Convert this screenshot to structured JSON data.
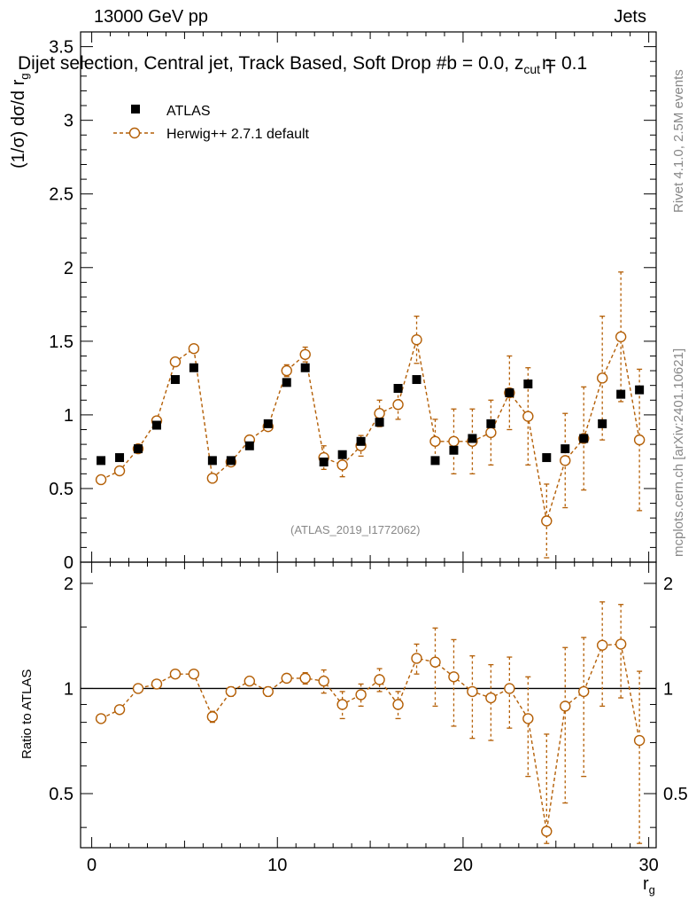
{
  "header": {
    "left": "13000 GeV pp",
    "right": "Jets",
    "title": "Dijet selection, Central jet, Track Based, Soft Drop #b = 0.0, z",
    "title_sub": "cut",
    "title_tail": "= 0.1",
    "eta_glyph": "η"
  },
  "side_labels": {
    "rivet": "Rivet 4.1.0,  2.5M events",
    "url": "mcplots.cern.ch [arXiv:2401.10621]"
  },
  "analysis_id": "(ATLAS_2019_I1772062)",
  "axes": {
    "ylabel_top": "(1/σ) dσ/d r",
    "ylabel_top_sub": "g",
    "ylabel_bottom": "Ratio to ATLAS",
    "xlabel": "r",
    "xlabel_sub": "g"
  },
  "colors": {
    "data": "#000000",
    "mc": "#b45f06",
    "axis": "#000000",
    "muted": "#888888"
  },
  "legend": {
    "data_label": "ATLAS",
    "mc_label": "Herwig++ 2.7.1 default"
  },
  "chart_data": [
    {
      "type": "scatter",
      "title": "Dijet selection, Central jet, Track Based, Soft Drop #b = 0.0, zcut = 0.1",
      "xlabel": "r_g",
      "ylabel": "(1/σ) dσ/d r_g",
      "xlim": [
        -0.6,
        30.4
      ],
      "ylim": [
        0,
        3.6
      ],
      "xticks": [
        0,
        10,
        20,
        30
      ],
      "yticks": [
        0,
        0.5,
        1,
        1.5,
        2,
        2.5,
        3,
        3.5
      ],
      "ytick_labels": [
        "0",
        "0.5",
        "1",
        "1.5",
        "2",
        "2.5",
        "3",
        "3.5"
      ],
      "legend_position": "top-left",
      "series": [
        {
          "name": "ATLAS",
          "marker": "square",
          "x": [
            0.5,
            1.5,
            2.5,
            3.5,
            4.5,
            5.5,
            6.5,
            7.5,
            8.5,
            9.5,
            10.5,
            11.5,
            12.5,
            13.5,
            14.5,
            15.5,
            16.5,
            17.5,
            18.5,
            19.5,
            20.5,
            21.5,
            22.5,
            23.5,
            24.5,
            25.5,
            26.5,
            27.5,
            28.5,
            29.5
          ],
          "values": [
            0.69,
            0.71,
            0.77,
            0.93,
            1.24,
            1.32,
            0.69,
            0.69,
            0.79,
            0.94,
            1.22,
            1.32,
            0.68,
            0.73,
            0.82,
            0.95,
            1.18,
            1.24,
            0.69,
            0.76,
            0.84,
            0.94,
            1.15,
            1.21,
            0.71,
            0.77,
            0.84,
            0.94,
            1.14,
            1.17
          ],
          "errors": [
            0.01,
            0.01,
            0.01,
            0.01,
            0.01,
            0.01,
            0.01,
            0.01,
            0.01,
            0.01,
            0.01,
            0.01,
            0.02,
            0.02,
            0.02,
            0.02,
            0.02,
            0.02,
            0.02,
            0.03,
            0.03,
            0.03,
            0.03,
            0.04,
            0.02,
            0.03,
            0.03,
            0.03,
            0.04,
            0.04
          ]
        },
        {
          "name": "Herwig++ 2.7.1 default",
          "marker": "open-circle",
          "x": [
            0.5,
            1.5,
            2.5,
            3.5,
            4.5,
            5.5,
            6.5,
            7.5,
            8.5,
            9.5,
            10.5,
            11.5,
            12.5,
            13.5,
            14.5,
            15.5,
            16.5,
            17.5,
            18.5,
            19.5,
            20.5,
            21.5,
            22.5,
            23.5,
            24.5,
            25.5,
            26.5,
            27.5,
            28.5,
            29.5
          ],
          "values": [
            0.56,
            0.62,
            0.77,
            0.96,
            1.36,
            1.45,
            0.57,
            0.68,
            0.83,
            0.92,
            1.3,
            1.41,
            0.71,
            0.66,
            0.79,
            1.01,
            1.07,
            1.51,
            0.82,
            0.82,
            0.82,
            0.88,
            1.15,
            0.99,
            0.28,
            0.69,
            0.84,
            1.25,
            1.53,
            0.83
          ],
          "errors": [
            0.01,
            0.01,
            0.02,
            0.02,
            0.03,
            0.03,
            0.02,
            0.02,
            0.03,
            0.03,
            0.04,
            0.05,
            0.08,
            0.08,
            0.07,
            0.09,
            0.1,
            0.16,
            0.15,
            0.22,
            0.22,
            0.22,
            0.25,
            0.33,
            0.25,
            0.32,
            0.35,
            0.42,
            0.44,
            0.48
          ]
        }
      ]
    },
    {
      "type": "scatter",
      "ylabel": "Ratio to ATLAS",
      "xlim": [
        -0.6,
        30.4
      ],
      "ylim": [
        0.35,
        2.3
      ],
      "xticks": [
        0,
        10,
        20,
        30
      ],
      "yticks": [
        0.5,
        1,
        2
      ],
      "ytick_labels": [
        "0.5",
        "1",
        "2"
      ],
      "reference_line": 1,
      "series": [
        {
          "name": "Herwig++ 2.7.1 default / ATLAS",
          "marker": "open-circle",
          "x": [
            0.5,
            1.5,
            2.5,
            3.5,
            4.5,
            5.5,
            6.5,
            7.5,
            8.5,
            9.5,
            10.5,
            11.5,
            12.5,
            13.5,
            14.5,
            15.5,
            16.5,
            17.5,
            18.5,
            19.5,
            20.5,
            21.5,
            22.5,
            23.5,
            24.5,
            25.5,
            26.5,
            27.5,
            28.5,
            29.5
          ],
          "values": [
            0.82,
            0.87,
            1.0,
            1.03,
            1.1,
            1.1,
            0.83,
            0.98,
            1.05,
            0.98,
            1.07,
            1.07,
            1.05,
            0.9,
            0.96,
            1.06,
            0.9,
            1.22,
            1.19,
            1.08,
            0.98,
            0.94,
            1.0,
            0.82,
            0.39,
            0.89,
            0.98,
            1.33,
            1.34,
            0.71
          ],
          "errors": [
            0.01,
            0.02,
            0.02,
            0.02,
            0.02,
            0.02,
            0.03,
            0.03,
            0.03,
            0.03,
            0.03,
            0.04,
            0.08,
            0.08,
            0.07,
            0.08,
            0.08,
            0.12,
            0.3,
            0.3,
            0.26,
            0.23,
            0.23,
            0.26,
            0.35,
            0.42,
            0.42,
            0.44,
            0.4,
            0.41
          ]
        }
      ]
    }
  ]
}
